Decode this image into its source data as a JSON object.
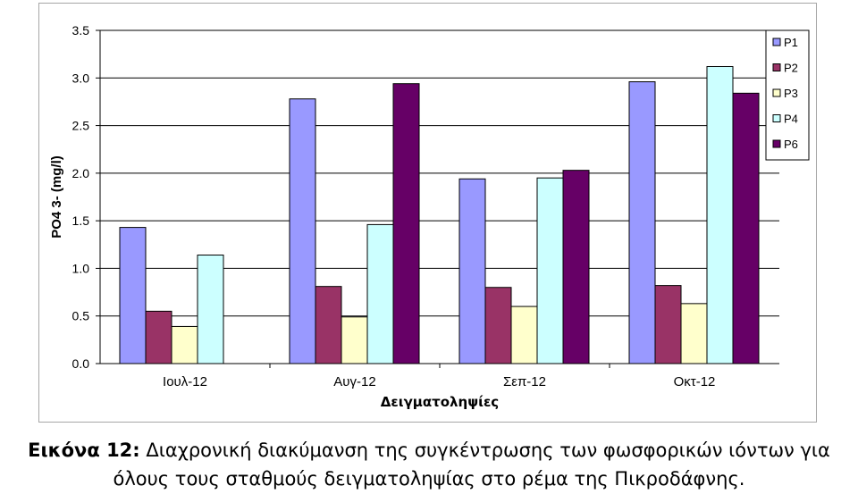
{
  "chart_data": {
    "type": "bar",
    "title": "",
    "xlabel": "Δειγματοληψίες",
    "ylabel": "PO4 3- (mg/l)",
    "ylim": [
      0,
      3.5
    ],
    "yticks": [
      "0.0",
      "0.5",
      "1.0",
      "1.5",
      "2.0",
      "2.5",
      "3.0",
      "3.5"
    ],
    "grid": "horizontal",
    "legend_position": "right",
    "categories": [
      "Ιουλ-12",
      "Αυγ-12",
      "Σεπ-12",
      "Οκτ-12"
    ],
    "series": [
      {
        "name": "P1",
        "color": "#9999ff",
        "values": [
          1.43,
          2.78,
          1.94,
          2.96
        ]
      },
      {
        "name": "P2",
        "color": "#993366",
        "values": [
          0.55,
          0.81,
          0.8,
          0.82
        ]
      },
      {
        "name": "P3",
        "color": "#ffffcc",
        "values": [
          0.39,
          0.49,
          0.6,
          0.63
        ]
      },
      {
        "name": "P4",
        "color": "#ccffff",
        "values": [
          1.14,
          1.46,
          1.95,
          3.12
        ]
      },
      {
        "name": "P6",
        "color": "#660066",
        "values": [
          null,
          2.94,
          2.03,
          2.84
        ]
      }
    ]
  },
  "caption": {
    "lead": "Εικόνα 12:",
    "line1": "Διαχρονική διακύμανση της συγκέντρωσης των φωσφορικών ιόντων για",
    "line2": "όλους τους σταθμούς δειγματοληψίας στο ρέμα της Πικροδάφνης."
  }
}
